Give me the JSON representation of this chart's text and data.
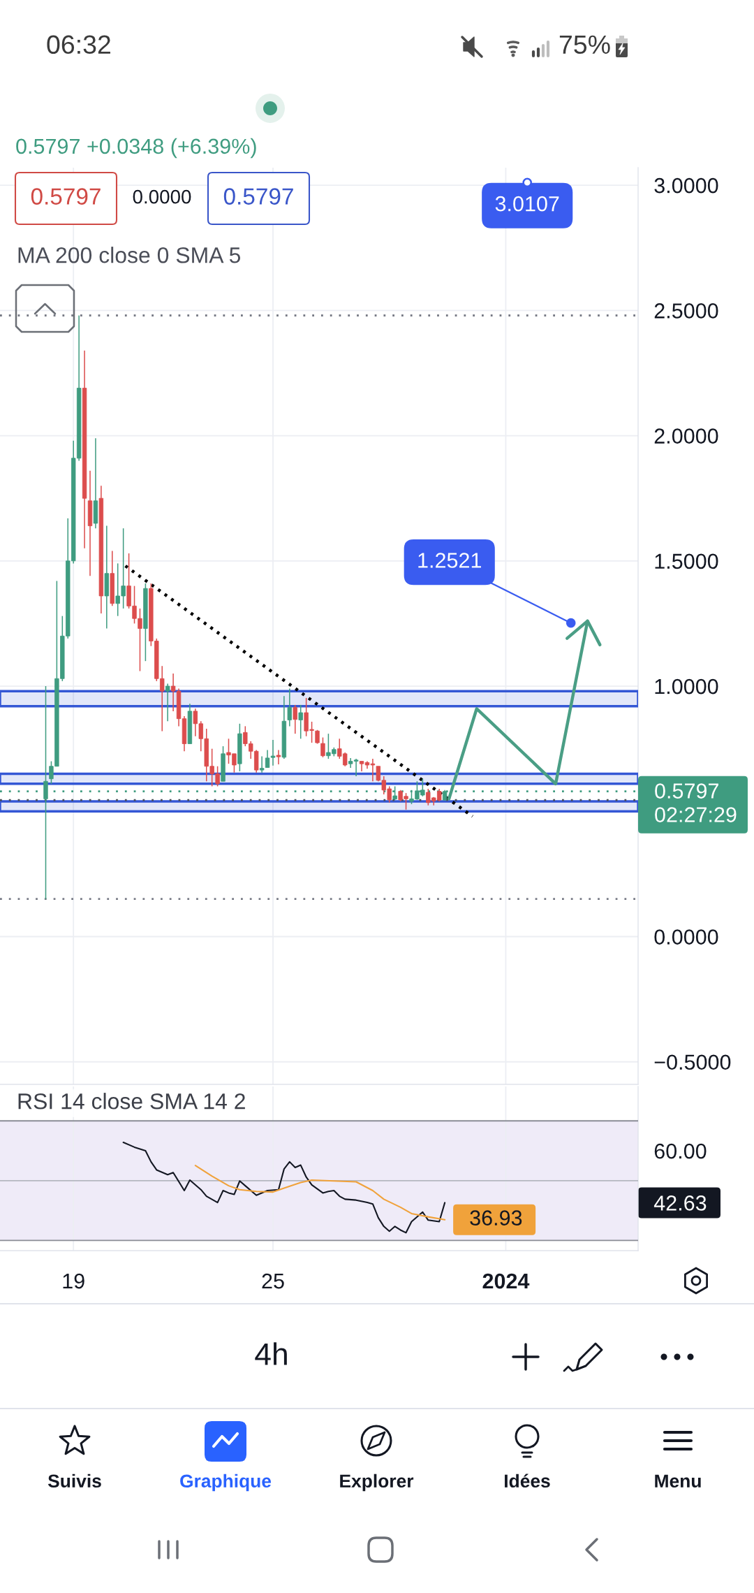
{
  "chart_data": [
    {
      "type": "candlestick",
      "subtitle": "0.5797 +0.0348 (+6.39%)",
      "x": [
        "2023-12-18T04:00",
        "2023-12-18T08:00",
        "2023-12-18T12:00",
        "2023-12-18T16:00",
        "2023-12-18T20:00",
        "2023-12-19T00:00",
        "2023-12-19T04:00",
        "2023-12-19T08:00",
        "2023-12-19T12:00",
        "2023-12-19T16:00",
        "2023-12-19T20:00",
        "2023-12-20T00:00",
        "2023-12-20T04:00",
        "2023-12-20T08:00",
        "2023-12-20T12:00",
        "2023-12-20T16:00",
        "2023-12-20T20:00",
        "2023-12-21T00:00",
        "2023-12-21T04:00",
        "2023-12-21T08:00",
        "2023-12-21T12:00",
        "2023-12-21T16:00",
        "2023-12-21T20:00",
        "2023-12-22T00:00",
        "2023-12-22T04:00",
        "2023-12-22T08:00",
        "2023-12-22T12:00",
        "2023-12-22T16:00",
        "2023-12-22T20:00",
        "2023-12-23T00:00",
        "2023-12-23T04:00",
        "2023-12-23T08:00",
        "2023-12-23T12:00",
        "2023-12-23T16:00",
        "2023-12-23T20:00",
        "2023-12-24T00:00",
        "2023-12-24T04:00",
        "2023-12-24T08:00",
        "2023-12-24T12:00",
        "2023-12-24T16:00",
        "2023-12-24T20:00",
        "2023-12-25T00:00",
        "2023-12-25T04:00",
        "2023-12-25T08:00",
        "2023-12-25T12:00",
        "2023-12-25T16:00",
        "2023-12-25T20:00",
        "2023-12-26T00:00",
        "2023-12-26T04:00",
        "2023-12-26T08:00",
        "2023-12-26T12:00",
        "2023-12-26T16:00",
        "2023-12-26T20:00",
        "2023-12-27T00:00",
        "2023-12-27T04:00",
        "2023-12-27T08:00",
        "2023-12-27T12:00",
        "2023-12-27T16:00",
        "2023-12-27T20:00",
        "2023-12-28T00:00",
        "2023-12-28T04:00",
        "2023-12-28T08:00",
        "2023-12-28T12:00",
        "2023-12-28T16:00",
        "2023-12-28T20:00",
        "2023-12-29T00:00",
        "2023-12-29T04:00",
        "2023-12-29T08:00",
        "2023-12-29T12:00",
        "2023-12-29T16:00",
        "2023-12-29T20:00",
        "2023-12-30T00:00",
        "2023-12-30T04:00"
      ],
      "ohlc": [
        [
          0.55,
          1.0,
          0.15,
          0.62
        ],
        [
          0.63,
          0.7,
          0.61,
          0.68
        ],
        [
          0.68,
          1.42,
          0.68,
          1.03
        ],
        [
          1.03,
          1.28,
          1.02,
          1.2
        ],
        [
          1.2,
          1.67,
          1.19,
          1.5
        ],
        [
          1.5,
          1.98,
          1.49,
          1.91
        ],
        [
          1.91,
          2.48,
          1.9,
          2.19
        ],
        [
          2.19,
          2.34,
          1.55,
          1.75
        ],
        [
          1.74,
          1.86,
          1.44,
          1.64
        ],
        [
          1.65,
          1.99,
          1.63,
          1.74
        ],
        [
          1.75,
          1.8,
          1.29,
          1.36
        ],
        [
          1.36,
          1.64,
          1.23,
          1.45
        ],
        [
          1.45,
          1.54,
          1.32,
          1.33
        ],
        [
          1.33,
          1.49,
          1.28,
          1.36
        ],
        [
          1.36,
          1.63,
          1.31,
          1.4
        ],
        [
          1.4,
          1.53,
          1.31,
          1.32
        ],
        [
          1.32,
          1.4,
          1.25,
          1.27
        ],
        [
          1.27,
          1.31,
          1.06,
          1.23
        ],
        [
          1.23,
          1.41,
          1.1,
          1.39
        ],
        [
          1.39,
          1.41,
          1.16,
          1.18
        ],
        [
          1.18,
          1.19,
          1.02,
          1.03
        ],
        [
          1.03,
          1.08,
          0.82,
          0.98
        ],
        [
          0.98,
          1.01,
          0.86,
          1.0
        ],
        [
          1.0,
          1.05,
          0.9,
          0.98
        ],
        [
          0.98,
          0.99,
          0.84,
          0.87
        ],
        [
          0.87,
          0.88,
          0.74,
          0.77
        ],
        [
          0.77,
          0.93,
          0.77,
          0.9
        ],
        [
          0.9,
          0.91,
          0.8,
          0.85
        ],
        [
          0.85,
          0.86,
          0.74,
          0.79
        ],
        [
          0.79,
          0.83,
          0.62,
          0.68
        ],
        [
          0.68,
          0.75,
          0.6,
          0.65
        ],
        [
          0.65,
          0.68,
          0.6,
          0.61
        ],
        [
          0.62,
          0.76,
          0.62,
          0.73
        ],
        [
          0.735,
          0.79,
          0.69,
          0.725
        ],
        [
          0.73,
          0.73,
          0.655,
          0.685
        ],
        [
          0.69,
          0.85,
          0.66,
          0.81
        ],
        [
          0.815,
          0.84,
          0.76,
          0.77
        ],
        [
          0.77,
          0.78,
          0.71,
          0.74
        ],
        [
          0.74,
          0.745,
          0.655,
          0.665
        ],
        [
          0.665,
          0.72,
          0.655,
          0.672
        ],
        [
          0.675,
          0.745,
          0.675,
          0.713
        ],
        [
          0.715,
          0.785,
          0.683,
          0.721
        ],
        [
          0.724,
          0.745,
          0.688,
          0.718
        ],
        [
          0.716,
          0.96,
          0.71,
          0.86
        ],
        [
          0.865,
          0.99,
          0.84,
          0.915
        ],
        [
          0.915,
          0.925,
          0.81,
          0.867
        ],
        [
          0.865,
          0.925,
          0.79,
          0.894
        ],
        [
          0.894,
          0.953,
          0.8,
          0.821
        ],
        [
          0.827,
          0.858,
          0.774,
          0.823
        ],
        [
          0.821,
          0.825,
          0.77,
          0.774
        ],
        [
          0.771,
          0.795,
          0.716,
          0.722
        ],
        [
          0.722,
          0.81,
          0.71,
          0.735
        ],
        [
          0.73,
          0.755,
          0.72,
          0.747
        ],
        [
          0.75,
          0.79,
          0.71,
          0.72
        ],
        [
          0.73,
          0.735,
          0.68,
          0.685
        ],
        [
          0.69,
          0.713,
          0.674,
          0.7
        ],
        [
          0.7,
          0.71,
          0.64,
          0.705
        ],
        [
          0.7,
          0.7,
          0.66,
          0.69
        ],
        [
          0.695,
          0.7,
          0.67,
          0.685
        ],
        [
          0.69,
          0.71,
          0.62,
          0.685
        ],
        [
          0.68,
          0.68,
          0.62,
          0.624
        ],
        [
          0.624,
          0.64,
          0.568,
          0.585
        ],
        [
          0.59,
          0.6,
          0.535,
          0.546
        ],
        [
          0.549,
          0.6,
          0.545,
          0.562
        ],
        [
          0.58,
          0.585,
          0.54,
          0.546
        ],
        [
          0.56,
          0.573,
          0.507,
          0.55
        ],
        [
          0.54,
          0.585,
          0.529,
          0.55
        ],
        [
          0.549,
          0.62,
          0.546,
          0.582
        ],
        [
          0.565,
          0.63,
          0.56,
          0.585
        ],
        [
          0.576,
          0.59,
          0.524,
          0.535
        ],
        [
          0.554,
          0.557,
          0.524,
          0.541
        ],
        [
          0.58,
          0.59,
          0.54,
          0.5449
        ],
        [
          0.5449,
          0.585,
          0.5449,
          0.5797
        ]
      ],
      "colors": [
        "#3f9c80",
        "#3f9c80",
        "#3f9c80",
        "#3f9c80",
        "#3f9c80",
        "#3f9c80",
        "#3f9c80",
        "#dc4d4d",
        "#dc4d4d",
        "#3f9c80",
        "#dc4d4d",
        "#3f9c80",
        "#dc4d4d",
        "#3f9c80",
        "#3f9c80",
        "#dc4d4d",
        "#dc4d4d",
        "#dc4d4d",
        "#3f9c80",
        "#dc4d4d",
        "#dc4d4d",
        "#dc4d4d",
        "#3f9c80",
        "#dc4d4d",
        "#dc4d4d",
        "#dc4d4d",
        "#3f9c80",
        "#dc4d4d",
        "#dc4d4d",
        "#dc4d4d",
        "#dc4d4d",
        "#dc4d4d",
        "#3f9c80",
        "#dc4d4d",
        "#dc4d4d",
        "#3f9c80",
        "#dc4d4d",
        "#dc4d4d",
        "#dc4d4d",
        "#3f9c80",
        "#3f9c80",
        "#3f9c80",
        "#dc4d4d",
        "#3f9c80",
        "#3f9c80",
        "#dc4d4d",
        "#3f9c80",
        "#dc4d4d",
        "#dc4d4d",
        "#dc4d4d",
        "#dc4d4d",
        "#3f9c80",
        "#3f9c80",
        "#dc4d4d",
        "#dc4d4d",
        "#3f9c80",
        "#3f9c80",
        "#dc4d4d",
        "#dc4d4d",
        "#dc4d4d",
        "#dc4d4d",
        "#dc4d4d",
        "#dc4d4d",
        "#3f9c80",
        "#dc4d4d",
        "#dc4d4d",
        "#3f9c80",
        "#3f9c80",
        "#3f9c80",
        "#dc4d4d",
        "#dc4d4d",
        "#dc4d4d",
        "#3f9c80"
      ],
      "series": [
        {
          "type": "line",
          "x": [
            "2023-12-20T13:30",
            "2023-12-31T00:00"
          ],
          "values": [
            1.48,
            0.48
          ],
          "color": "#000000",
          "line_style": "dotted"
        },
        {
          "type": "line",
          "x": [
            "2023-12-30T07:00",
            "2023-12-31T03:00",
            "2024-01-02T12:00",
            "2024-01-03T11:00"
          ],
          "values": [
            0.55,
            0.91,
            0.61,
            1.26
          ],
          "color": "#4a9e85"
        }
      ],
      "ref_lines": [
        {
          "axis": "y",
          "value": 2.48,
          "color": "#787b86",
          "line_style": "dotted"
        },
        {
          "axis": "y",
          "value": 0.15,
          "color": "#787b86",
          "line_style": "dotted"
        },
        {
          "axis": "y",
          "value": 0.5449,
          "color": "#4a4d57",
          "line_style": "dotted"
        },
        {
          "axis": "y",
          "value": 0.5797,
          "label": "0.5797\n02:27:29",
          "color": "#3f9c80",
          "line_style": "dotted"
        }
      ],
      "bands": [
        {
          "axis": "y",
          "from": 0.92,
          "to": 0.98,
          "color": "#3457d5"
        },
        {
          "axis": "y",
          "from": 0.61,
          "to": 0.65,
          "color": "#3457d5"
        },
        {
          "axis": "y",
          "from": 0.5,
          "to": 0.54,
          "color": "#3457d5"
        }
      ],
      "annotations": [
        {
          "text": "3.0107",
          "x": "2024-01-01T15:30",
          "y": 3.0107
        },
        {
          "text": "1.2521",
          "x": "2024-01-02T23:00",
          "y": 1.2521
        },
        "06:32",
        "75%",
        "0.5797",
        "0.0000",
        "0.5797",
        "MA 200 close 0 SMA 5",
        "4h",
        "Suivis",
        "Graphique",
        "Explorer",
        "Idées",
        "Menu"
      ],
      "xlim": [
        "2023-12-16T19:00",
        "2024-01-04T23:30"
      ],
      "ylim": [
        -0.59,
        3.07
      ],
      "xticks": [
        {
          "value": "2023-12-19",
          "label": null
        },
        {
          "value": "2023-12-25",
          "label": null
        },
        {
          "value": "2024-01-01",
          "label": null
        }
      ],
      "yticks": [
        {
          "value": 3,
          "label": "3.0000"
        },
        {
          "value": 2.5,
          "label": "2.5000"
        },
        {
          "value": 2,
          "label": "2.0000"
        },
        {
          "value": 1.5,
          "label": "1.5000"
        },
        {
          "value": 1,
          "label": "1.0000"
        },
        {
          "value": 0,
          "label": "0.0000"
        },
        {
          "value": -0.5,
          "label": "−0.5000"
        }
      ],
      "grid": true,
      "tick_labels": "y"
    },
    {
      "type": "line",
      "title": "RSI 14 close SMA 14 2",
      "series": [
        {
          "color": "#131722",
          "x": [
            "2023-12-20T12:00",
            "2023-12-20T20:00",
            "2023-12-21T04:00",
            "2023-12-21T08:00",
            "2023-12-21T12:00",
            "2023-12-21T20:00",
            "2023-12-22T00:00",
            "2023-12-22T08:00",
            "2023-12-22T12:00",
            "2023-12-22T20:00",
            "2023-12-23T00:00",
            "2023-12-23T08:00",
            "2023-12-23T12:00",
            "2023-12-23T16:00",
            "2023-12-23T20:00",
            "2023-12-24T00:00",
            "2023-12-24T04:00",
            "2023-12-24T12:00",
            "2023-12-24T20:00",
            "2023-12-25T04:00",
            "2023-12-25T08:00",
            "2023-12-25T12:00",
            "2023-12-25T16:00",
            "2023-12-25T20:00",
            "2023-12-26T00:00",
            "2023-12-26T04:00",
            "2023-12-26T12:00",
            "2023-12-26T16:00",
            "2023-12-26T20:00",
            "2023-12-27T00:00",
            "2023-12-27T04:00",
            "2023-12-27T12:00",
            "2023-12-27T20:00",
            "2023-12-28T00:00",
            "2023-12-28T04:00",
            "2023-12-28T08:00",
            "2023-12-28T12:00",
            "2023-12-28T16:00",
            "2023-12-28T20:00",
            "2023-12-29T00:00",
            "2023-12-29T04:00",
            "2023-12-29T12:00",
            "2023-12-29T16:00",
            "2023-12-30T00:00",
            "2023-12-30T04:00"
          ],
          "values": [
            62.8,
            61.2,
            60.0,
            56.3,
            53.6,
            52.0,
            52.7,
            46.7,
            50.2,
            47.0,
            44.8,
            42.7,
            46.7,
            45.9,
            45.4,
            49.9,
            48.3,
            45.1,
            46.7,
            47.0,
            53.9,
            56.3,
            54.4,
            55.2,
            51.2,
            48.6,
            45.9,
            46.4,
            46.7,
            44.8,
            43.8,
            43.5,
            42.7,
            42.2,
            37.6,
            34.7,
            33.1,
            34.7,
            33.5,
            32.6,
            36.3,
            39.5,
            36.8,
            36.3,
            42.63
          ]
        },
        {
          "color": "#f0a23b",
          "x": [
            "2023-12-22T16:00",
            "2023-12-23T04:00",
            "2023-12-23T16:00",
            "2023-12-24T00:00",
            "2023-12-24T12:00",
            "2023-12-25T00:00",
            "2023-12-25T08:00",
            "2023-12-25T20:00",
            "2023-12-26T04:00",
            "2023-12-26T20:00",
            "2023-12-27T12:00",
            "2023-12-28T00:00",
            "2023-12-28T08:00",
            "2023-12-28T20:00",
            "2023-12-29T04:00",
            "2023-12-29T16:00",
            "2023-12-30T04:00"
          ],
          "values": [
            55.1,
            51.5,
            48.3,
            47.0,
            46.4,
            46.2,
            47.5,
            49.4,
            50.2,
            49.9,
            49.6,
            46.7,
            43.8,
            41.1,
            39.0,
            37.9,
            36.93
          ],
          "value_labels": [
            null,
            null,
            null,
            null,
            null,
            null,
            null,
            null,
            null,
            null,
            null,
            null,
            null,
            null,
            null,
            null,
            "36.93"
          ]
        }
      ],
      "ref_lines": [
        {
          "axis": "y",
          "value": 70,
          "color": "#8a8d96"
        },
        {
          "axis": "y",
          "value": 50,
          "color": "#b4b7c0"
        },
        {
          "axis": "y",
          "value": 30,
          "color": "#8a8d96"
        }
      ],
      "bands": [
        {
          "axis": "y",
          "from": 30,
          "to": 70,
          "color": "#efebf8"
        }
      ],
      "xlim": [
        "2023-12-16T19:00",
        "2024-01-04T23:30"
      ],
      "ylim": [
        26.6,
        81.5
      ],
      "xticks": [
        {
          "value": "2023-12-19",
          "label": "19"
        },
        {
          "value": "2023-12-25",
          "label": "25"
        },
        {
          "value": "2024-01-01",
          "label": "2024"
        }
      ],
      "yticks": [
        {
          "value": 60,
          "label": "60.00"
        },
        {
          "value": 42.63,
          "label": "42.63"
        }
      ],
      "grid": "x"
    }
  ]
}
